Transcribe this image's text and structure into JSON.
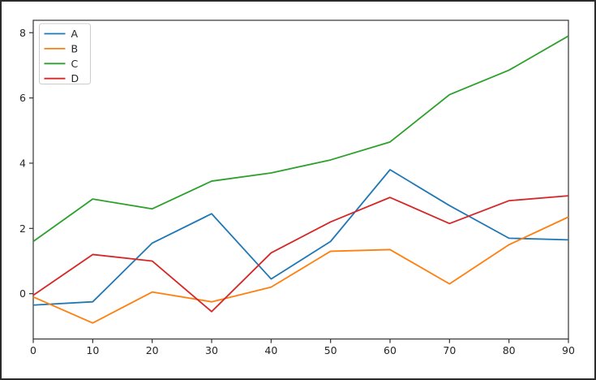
{
  "figure": {
    "background_color": "#ffffff",
    "frame_color": "#2b2b2b",
    "spine_color": "#333333",
    "tick_color": "#333333",
    "text_color": "#262626",
    "legend_border_color": "#cccccc",
    "legend_background": "#ffffff"
  },
  "chart_data": {
    "type": "line",
    "title": "",
    "xlabel": "",
    "ylabel": "",
    "x": [
      0,
      10,
      20,
      30,
      40,
      50,
      60,
      70,
      80,
      90
    ],
    "series": [
      {
        "name": "A",
        "color": "#1f77b4",
        "values": [
          -0.35,
          -0.25,
          1.55,
          2.45,
          0.45,
          1.6,
          3.8,
          2.7,
          1.7,
          1.65
        ]
      },
      {
        "name": "B",
        "color": "#ff7f0e",
        "values": [
          -0.1,
          -0.9,
          0.05,
          -0.25,
          0.2,
          1.3,
          1.35,
          0.3,
          1.5,
          2.35
        ]
      },
      {
        "name": "C",
        "color": "#2ca02c",
        "values": [
          1.6,
          2.9,
          2.6,
          3.45,
          3.7,
          4.1,
          4.65,
          6.1,
          6.85,
          7.9
        ]
      },
      {
        "name": "D",
        "color": "#d62728",
        "values": [
          -0.05,
          1.2,
          1.0,
          -0.55,
          1.25,
          2.2,
          2.95,
          2.15,
          2.85,
          3.0
        ]
      }
    ],
    "xlim": [
      0,
      90
    ],
    "ylim": [
      -1.39,
      8.38
    ],
    "xticks": [
      0,
      10,
      20,
      30,
      40,
      50,
      60,
      70,
      80,
      90
    ],
    "yticks": [
      0,
      2,
      4,
      6,
      8
    ],
    "grid": false,
    "legend_position": "upper left",
    "legend_entries": [
      "A",
      "B",
      "C",
      "D"
    ]
  }
}
